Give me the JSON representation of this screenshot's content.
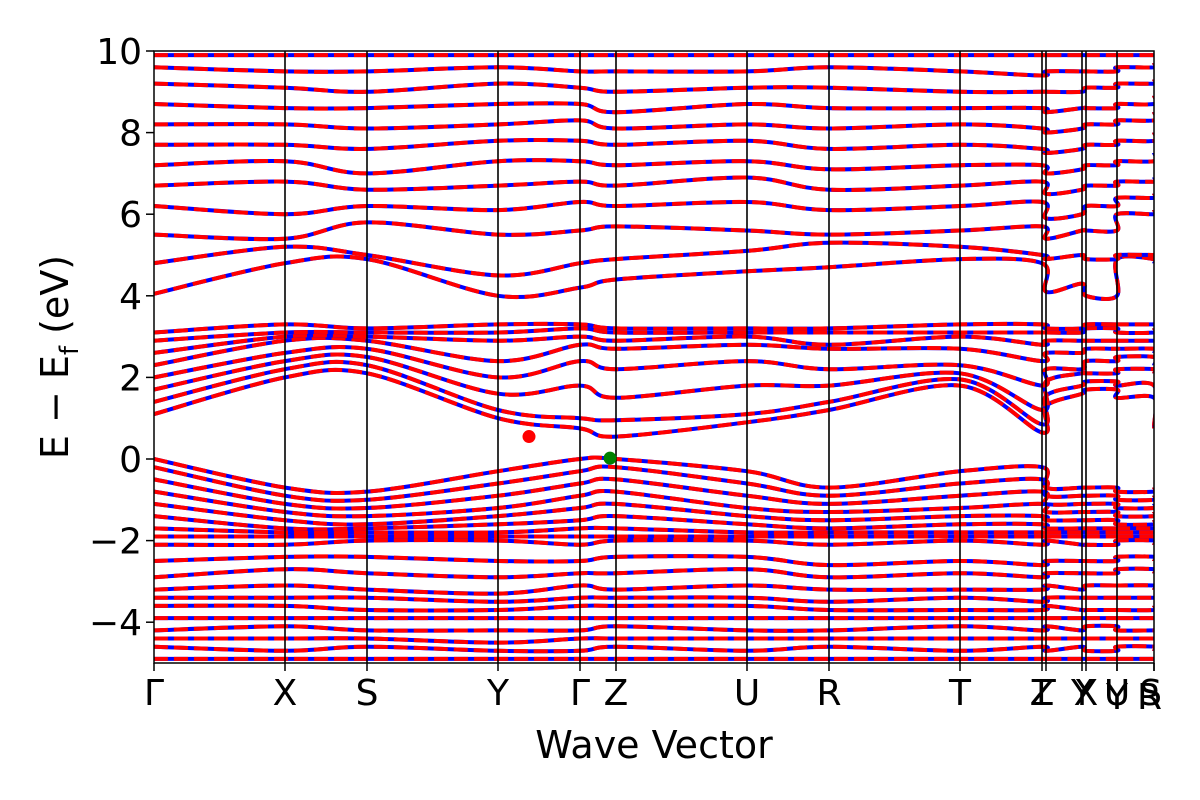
{
  "chart_data": {
    "type": "line",
    "title": "",
    "xlabel": "Wave Vector",
    "ylabel": "E − E_f (eV)",
    "ylabel_parts": {
      "main": "E − E",
      "sub": "f",
      "unit": " (eV)"
    },
    "ylim": [
      -5,
      10
    ],
    "y_ticks": [
      -4,
      -2,
      0,
      2,
      4,
      6,
      8,
      10
    ],
    "y_tick_labels": [
      "−4",
      "−2",
      "0",
      "2",
      "4",
      "6",
      "8",
      "10"
    ],
    "xlim": [
      0,
      1
    ],
    "high_symmetry_points": [
      {
        "label": "Γ",
        "x": 0.0
      },
      {
        "label": "X",
        "x": 0.131
      },
      {
        "label": "S",
        "x": 0.213
      },
      {
        "label": "Y",
        "x": 0.344
      },
      {
        "label": "Γ",
        "x": 0.426
      },
      {
        "label": "Z",
        "x": 0.462
      },
      {
        "label": "U",
        "x": 0.593
      },
      {
        "label": "R",
        "x": 0.675
      },
      {
        "label": "T",
        "x": 0.806
      },
      {
        "label": "Z",
        "x": 0.888
      },
      {
        "label": "Γ",
        "x": 0.892
      },
      {
        "label": "Y",
        "x": 0.928
      },
      {
        "label": "X",
        "x": 0.932
      },
      {
        "label": "U",
        "x": 0.963
      },
      {
        "label": "Y",
        "x": 0.963
      },
      {
        "label": "S",
        "x": 1.0
      },
      {
        "label": "R",
        "x": 1.0
      }
    ],
    "series": [
      {
        "color": "#0000ff",
        "style": "solid"
      },
      {
        "color": "#ff0000",
        "style": "dashed"
      }
    ],
    "bands": [
      {
        "y": [
          1.1,
          2.0,
          2.1,
          1.0,
          0.75,
          0.55,
          0.9,
          1.2,
          1.8,
          0.65,
          1.3,
          1.6,
          1.7,
          1.7,
          1.5,
          1.5,
          0.75
        ]
      },
      {
        "y": [
          1.4,
          2.2,
          2.3,
          1.2,
          1.0,
          0.95,
          1.1,
          1.4,
          1.95,
          0.85,
          1.55,
          1.8,
          1.9,
          1.9,
          1.8,
          1.8,
          0.8
        ]
      },
      {
        "y": [
          1.7,
          2.4,
          2.5,
          1.6,
          1.8,
          1.5,
          1.8,
          1.8,
          2.1,
          1.2,
          1.9,
          2.1,
          2.1,
          2.1,
          2.2,
          2.2,
          2.1
        ]
      },
      {
        "y": [
          2.0,
          2.6,
          2.7,
          2.0,
          2.4,
          2.2,
          2.4,
          2.2,
          2.3,
          1.8,
          2.2,
          2.2,
          2.4,
          2.4,
          2.5,
          2.5,
          2.3
        ]
      },
      {
        "y": [
          2.3,
          2.9,
          2.9,
          2.4,
          2.8,
          2.7,
          2.8,
          2.7,
          2.7,
          2.4,
          2.6,
          2.6,
          2.7,
          2.7,
          2.7,
          2.7,
          2.6
        ]
      },
      {
        "y": [
          2.6,
          3.0,
          3.0,
          2.9,
          3.0,
          2.9,
          3.0,
          2.8,
          3.0,
          2.8,
          2.9,
          2.9,
          2.9,
          2.9,
          2.9,
          2.9,
          2.9
        ]
      },
      {
        "y": [
          2.9,
          3.1,
          3.1,
          3.1,
          3.2,
          3.1,
          3.1,
          3.1,
          3.1,
          3.1,
          3.1,
          3.1,
          3.2,
          3.2,
          3.1,
          3.1,
          3.2
        ]
      },
      {
        "y": [
          3.1,
          3.3,
          3.2,
          3.3,
          3.3,
          3.2,
          3.2,
          3.2,
          3.3,
          3.3,
          3.2,
          3.2,
          3.3,
          3.3,
          3.3,
          3.3,
          3.3
        ]
      },
      {
        "y": [
          4.05,
          4.8,
          4.9,
          4.0,
          4.2,
          4.4,
          4.6,
          4.7,
          4.9,
          4.8,
          4.1,
          4.3,
          4.0,
          4.0,
          4.9,
          4.9,
          4.8
        ]
      },
      {
        "y": [
          4.8,
          5.2,
          5.0,
          4.5,
          4.8,
          4.9,
          5.1,
          5.3,
          5.2,
          5.0,
          4.9,
          5.0,
          4.9,
          4.9,
          5.0,
          5.0,
          5.0
        ]
      },
      {
        "y": [
          5.5,
          5.4,
          5.8,
          5.5,
          5.6,
          5.7,
          5.6,
          5.5,
          5.6,
          5.7,
          5.4,
          5.6,
          5.6,
          5.6,
          6.0,
          6.0,
          6.1
        ]
      },
      {
        "y": [
          6.2,
          6.0,
          6.2,
          6.1,
          6.3,
          6.2,
          6.3,
          6.1,
          6.2,
          6.3,
          5.9,
          6.0,
          6.2,
          6.2,
          6.4,
          6.4,
          6.5
        ]
      },
      {
        "y": [
          6.7,
          6.8,
          6.6,
          6.7,
          6.8,
          6.7,
          6.9,
          6.6,
          6.7,
          6.8,
          6.5,
          6.6,
          6.7,
          6.7,
          6.8,
          6.8,
          6.9
        ]
      },
      {
        "y": [
          7.2,
          7.3,
          7.0,
          7.3,
          7.3,
          7.2,
          7.3,
          7.1,
          7.2,
          7.2,
          7.0,
          7.1,
          7.2,
          7.2,
          7.3,
          7.3,
          7.5
        ]
      },
      {
        "y": [
          7.7,
          7.7,
          7.6,
          7.8,
          7.8,
          7.7,
          7.8,
          7.6,
          7.7,
          7.6,
          7.5,
          7.6,
          7.7,
          7.7,
          7.8,
          7.8,
          8.0
        ]
      },
      {
        "y": [
          8.2,
          8.2,
          8.1,
          8.2,
          8.3,
          8.1,
          8.2,
          8.1,
          8.2,
          8.1,
          8.0,
          8.1,
          8.2,
          8.2,
          8.3,
          8.3,
          8.5
        ]
      },
      {
        "y": [
          8.7,
          8.6,
          8.6,
          8.7,
          8.7,
          8.5,
          8.7,
          8.6,
          8.6,
          8.6,
          8.5,
          8.6,
          8.6,
          8.6,
          8.7,
          8.7,
          8.9
        ]
      },
      {
        "y": [
          9.2,
          9.1,
          9.0,
          9.2,
          9.1,
          9.0,
          9.1,
          9.1,
          9.0,
          9.0,
          9.0,
          9.0,
          9.1,
          9.1,
          9.2,
          9.2,
          9.3
        ]
      },
      {
        "y": [
          9.6,
          9.5,
          9.5,
          9.6,
          9.5,
          9.5,
          9.5,
          9.6,
          9.5,
          9.4,
          9.5,
          9.5,
          9.5,
          9.5,
          9.6,
          9.6,
          9.7
        ]
      },
      {
        "y": [
          9.9,
          9.9,
          9.9,
          9.9,
          9.9,
          9.9,
          9.9,
          9.9,
          9.9,
          9.9,
          9.9,
          9.9,
          9.9,
          9.9,
          9.9,
          9.9,
          9.9
        ]
      },
      {
        "y": [
          0.0,
          -0.7,
          -0.8,
          -0.3,
          0.0,
          0.0,
          -0.3,
          -0.7,
          -0.3,
          -0.2,
          -0.7,
          -0.7,
          -0.7,
          -0.7,
          -0.8,
          -0.8,
          -0.7
        ]
      },
      {
        "y": [
          -0.2,
          -0.9,
          -1.0,
          -0.6,
          -0.3,
          -0.2,
          -0.6,
          -0.9,
          -0.6,
          -0.5,
          -0.9,
          -0.9,
          -0.9,
          -0.9,
          -1.0,
          -1.0,
          -0.9
        ]
      },
      {
        "y": [
          -0.5,
          -1.1,
          -1.2,
          -0.9,
          -0.6,
          -0.5,
          -0.9,
          -1.1,
          -0.9,
          -0.8,
          -1.1,
          -1.1,
          -1.1,
          -1.1,
          -1.2,
          -1.2,
          -1.1
        ]
      },
      {
        "y": [
          -0.8,
          -1.3,
          -1.4,
          -1.2,
          -0.9,
          -0.8,
          -1.2,
          -1.3,
          -1.2,
          -1.1,
          -1.3,
          -1.3,
          -1.3,
          -1.3,
          -1.4,
          -1.4,
          -1.3
        ]
      },
      {
        "y": [
          -1.1,
          -1.5,
          -1.6,
          -1.4,
          -1.2,
          -1.1,
          -1.4,
          -1.5,
          -1.4,
          -1.4,
          -1.5,
          -1.5,
          -1.5,
          -1.5,
          -1.6,
          -1.6,
          -1.5
        ]
      },
      {
        "y": [
          -1.4,
          -1.7,
          -1.7,
          -1.6,
          -1.5,
          -1.4,
          -1.6,
          -1.7,
          -1.6,
          -1.6,
          -1.7,
          -1.7,
          -1.7,
          -1.7,
          -1.7,
          -1.7,
          -1.7
        ]
      },
      {
        "y": [
          -1.7,
          -1.8,
          -1.8,
          -1.8,
          -1.7,
          -1.7,
          -1.8,
          -1.8,
          -1.8,
          -1.8,
          -1.8,
          -1.8,
          -1.8,
          -1.8,
          -1.8,
          -1.8,
          -1.8
        ]
      },
      {
        "y": [
          -1.9,
          -1.9,
          -1.9,
          -1.9,
          -1.9,
          -1.9,
          -1.9,
          -1.9,
          -1.9,
          -1.9,
          -1.9,
          -1.9,
          -1.9,
          -1.9,
          -1.9,
          -1.9,
          -1.9
        ]
      },
      {
        "y": [
          -2.1,
          -2.1,
          -2.0,
          -2.0,
          -2.1,
          -2.0,
          -2.0,
          -2.1,
          -2.0,
          -2.1,
          -2.0,
          -2.1,
          -2.1,
          -2.1,
          -2.0,
          -2.0,
          -2.1
        ]
      },
      {
        "y": [
          -2.5,
          -2.4,
          -2.4,
          -2.5,
          -2.5,
          -2.4,
          -2.4,
          -2.6,
          -2.5,
          -2.6,
          -2.5,
          -2.5,
          -2.5,
          -2.5,
          -2.4,
          -2.4,
          -2.5
        ]
      },
      {
        "y": [
          -2.9,
          -2.7,
          -2.8,
          -2.9,
          -2.8,
          -2.8,
          -2.7,
          -2.9,
          -2.8,
          -2.9,
          -2.8,
          -2.8,
          -2.8,
          -2.8,
          -2.7,
          -2.7,
          -2.8
        ]
      },
      {
        "y": [
          -3.2,
          -3.1,
          -3.2,
          -3.3,
          -3.1,
          -3.2,
          -3.1,
          -3.2,
          -3.2,
          -3.2,
          -3.1,
          -3.2,
          -3.1,
          -3.1,
          -3.1,
          -3.1,
          -3.2
        ]
      },
      {
        "y": [
          -3.4,
          -3.4,
          -3.4,
          -3.5,
          -3.4,
          -3.4,
          -3.4,
          -3.5,
          -3.4,
          -3.5,
          -3.4,
          -3.4,
          -3.4,
          -3.4,
          -3.4,
          -3.4,
          -3.4
        ]
      },
      {
        "y": [
          -3.6,
          -3.6,
          -3.7,
          -3.7,
          -3.6,
          -3.6,
          -3.6,
          -3.7,
          -3.7,
          -3.7,
          -3.6,
          -3.7,
          -3.7,
          -3.7,
          -3.7,
          -3.7,
          -3.6
        ]
      },
      {
        "y": [
          -3.9,
          -3.9,
          -3.9,
          -3.9,
          -3.9,
          -3.9,
          -3.9,
          -3.9,
          -3.9,
          -3.9,
          -3.9,
          -3.9,
          -3.9,
          -3.9,
          -3.9,
          -3.9,
          -3.9
        ]
      },
      {
        "y": [
          -4.2,
          -4.1,
          -4.2,
          -4.2,
          -4.2,
          -4.1,
          -4.2,
          -4.2,
          -4.1,
          -4.2,
          -4.1,
          -4.2,
          -4.1,
          -4.1,
          -4.2,
          -4.2,
          -4.2
        ]
      },
      {
        "y": [
          -4.4,
          -4.4,
          -4.4,
          -4.5,
          -4.4,
          -4.4,
          -4.4,
          -4.4,
          -4.4,
          -4.4,
          -4.4,
          -4.4,
          -4.4,
          -4.4,
          -4.4,
          -4.4,
          -4.4
        ]
      },
      {
        "y": [
          -4.6,
          -4.7,
          -4.6,
          -4.7,
          -4.7,
          -4.6,
          -4.7,
          -4.6,
          -4.7,
          -4.6,
          -4.7,
          -4.6,
          -4.7,
          -4.7,
          -4.6,
          -4.6,
          -4.7
        ]
      },
      {
        "y": [
          -4.9,
          -4.9,
          -4.9,
          -4.9,
          -4.9,
          -4.9,
          -4.9,
          -4.9,
          -4.9,
          -4.9,
          -4.9,
          -4.9,
          -4.9,
          -4.9,
          -4.9,
          -4.9,
          -4.9
        ]
      }
    ],
    "markers": [
      {
        "x": 0.375,
        "y": 0.55,
        "color": "#ff0000",
        "kind": "CBM"
      },
      {
        "x": 0.456,
        "y": 0.02,
        "color": "#008000",
        "kind": "VBM"
      }
    ],
    "grid": false,
    "legend": "none"
  }
}
